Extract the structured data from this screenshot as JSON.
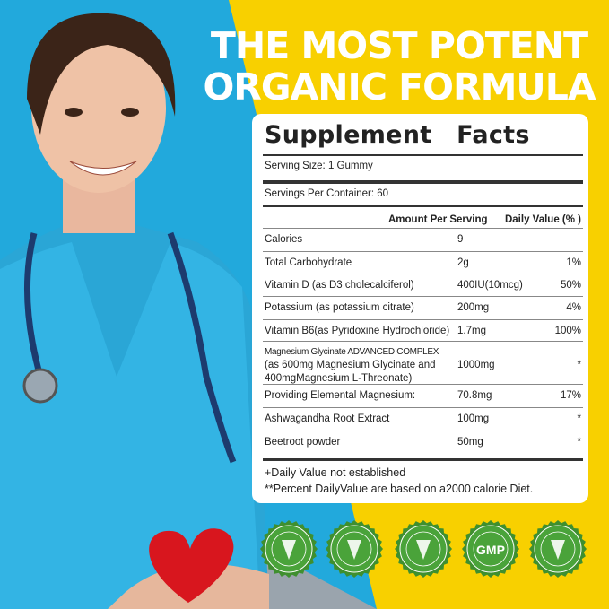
{
  "headline": [
    "THE MOST POTENT",
    "ORGANIC FORMULA"
  ],
  "facts": {
    "title": "Supplement Facts",
    "serving_size": "Serving Size: 1 Gummy",
    "servings_per_container": "Servings Per Container: 60",
    "col_amount": "Amount Per Serving",
    "col_dv": "Daily Value (% )",
    "rows": [
      {
        "name": "Calories",
        "amount": "9",
        "dv": ""
      },
      {
        "name": "Total Carbohydrate",
        "amount": "2g",
        "dv": "1%"
      },
      {
        "name": "Vitamin D (as D3 cholecalciferol)",
        "amount": "400IU(10mcg)",
        "dv": "50%"
      },
      {
        "name": "Potassium (as potassium citrate)",
        "amount": "200mg",
        "dv": "4%"
      },
      {
        "name": "Vitamin B6(as Pyridoxine Hydrochloride)",
        "amount": "1.7mg",
        "dv": "100%"
      },
      {
        "name": "Magnesium Glycinate ADVANCED COMPLEX",
        "name2": "(as 600mg Magnesium Glycinate and",
        "name3": "400mgMagnesium L-Threonate)",
        "amount": "1000mg",
        "dv": "*"
      },
      {
        "name": "Providing Elemental Magnesium:",
        "amount": "70.8mg",
        "dv": "17%"
      },
      {
        "name": "Ashwagandha Root Extract",
        "amount": "100mg",
        "dv": "*"
      },
      {
        "name": "Beetroot powder",
        "amount": "50mg",
        "dv": "*"
      }
    ],
    "footnote1": "+Daily Value not established",
    "footnote2": "**Percent DailyValue are based on a2000 calorie Diet."
  },
  "badges": [
    {
      "icon": "wheat-icon"
    },
    {
      "icon": "dna-icon"
    },
    {
      "icon": "sugar-cube-icon"
    },
    {
      "icon": "gmp-icon",
      "label": "GMP"
    },
    {
      "icon": "leaf-icon"
    }
  ],
  "colors": {
    "blue": "#22a9dc",
    "yellow": "#f8d000",
    "badge_green": "#4aa33a"
  }
}
